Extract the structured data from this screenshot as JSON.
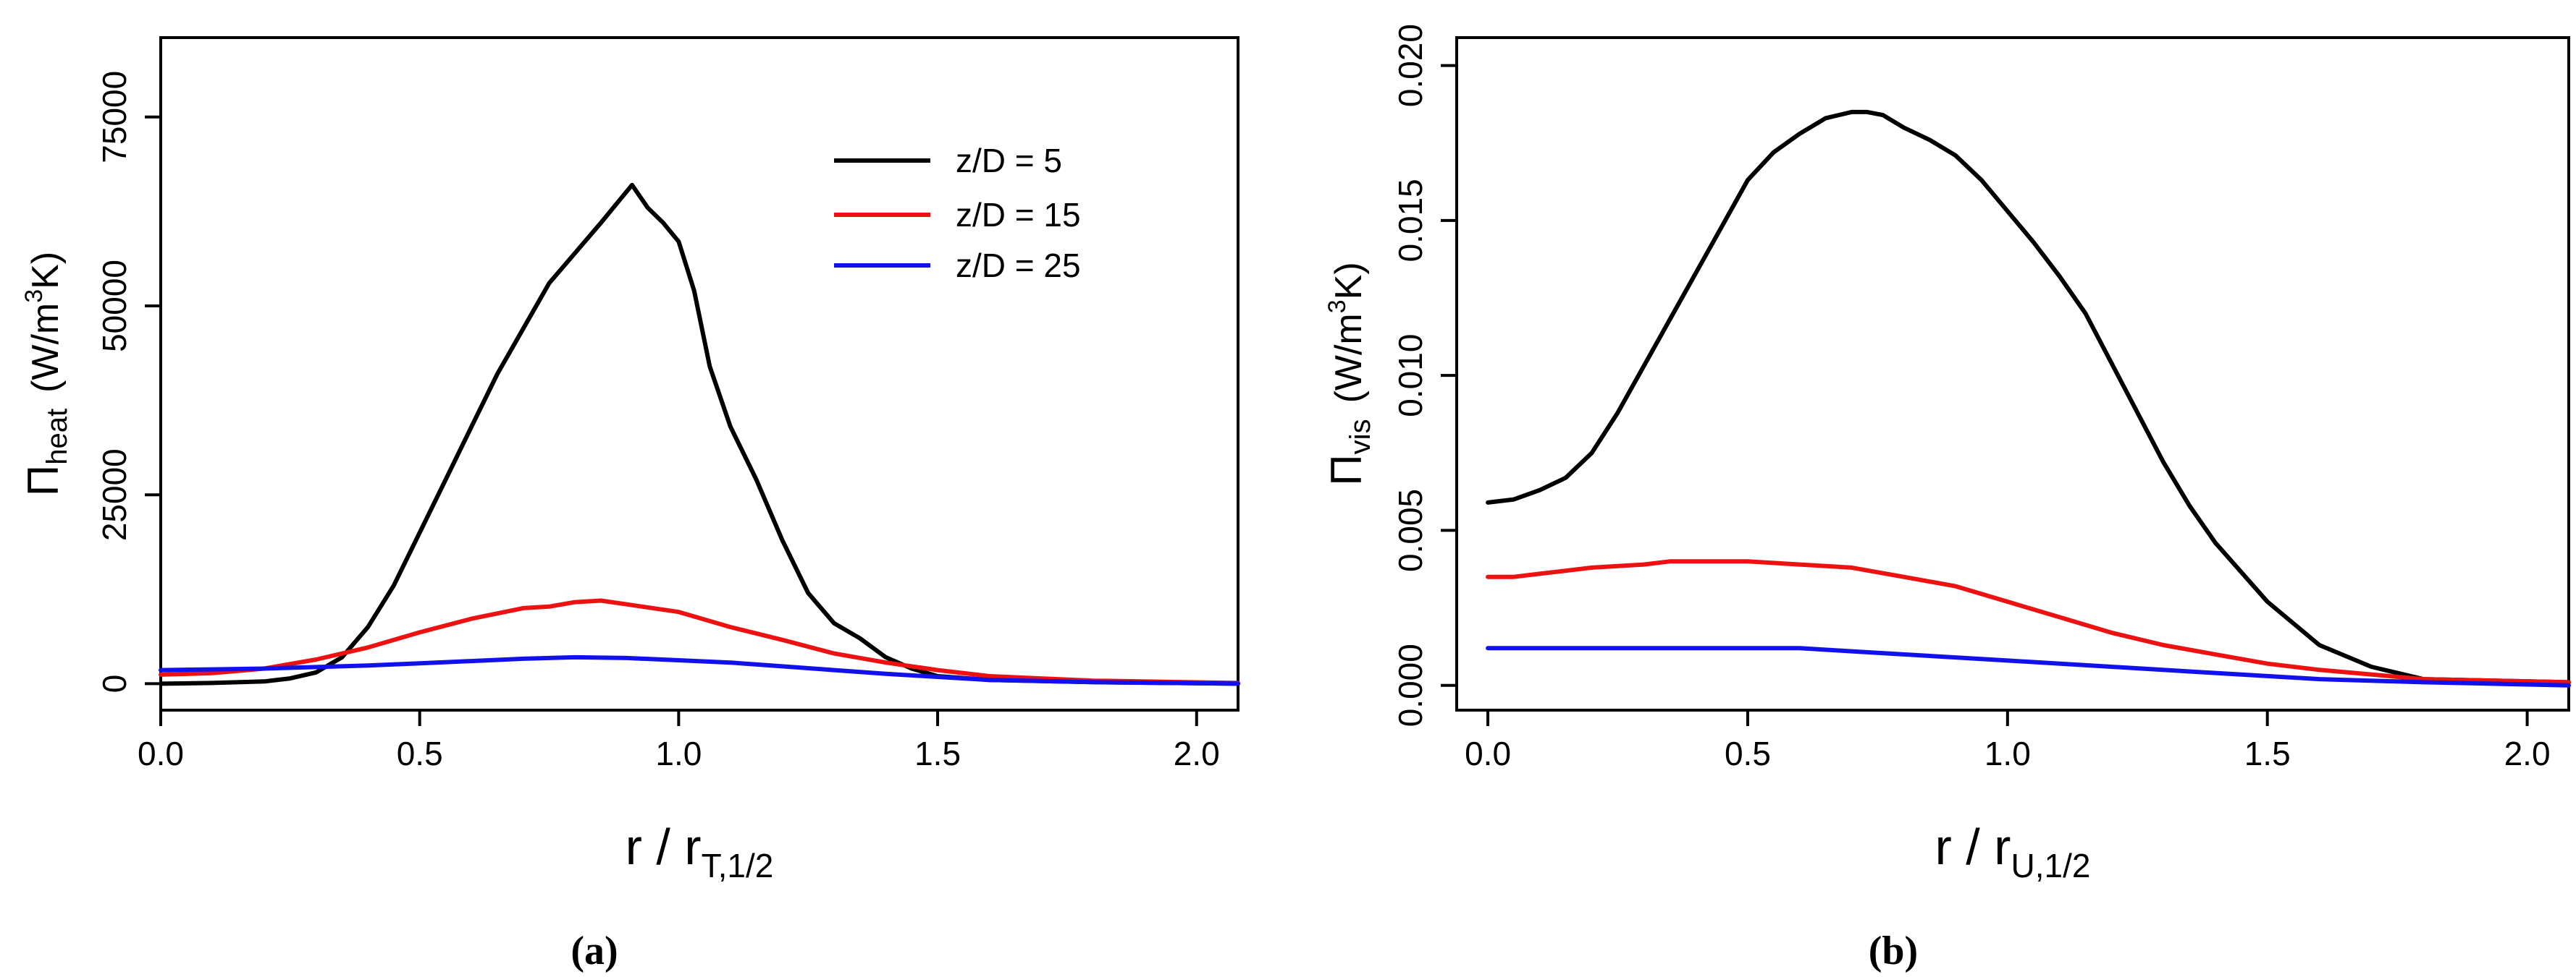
{
  "chart_data": [
    {
      "type": "line",
      "panel": "a",
      "caption": "(a)",
      "xlabel": {
        "main": "r / r",
        "sub": "T,1/2"
      },
      "ylabel": {
        "symbol": "Π",
        "sub": "heat",
        "units_a": "(W/m",
        "units_sup": "3",
        "units_b": "K)"
      },
      "xlim": [
        0.0,
        2.08
      ],
      "ylim": [
        -3500,
        85500
      ],
      "xticks": [
        "0.0",
        "0.5",
        "1.0",
        "1.5",
        "2.0"
      ],
      "xtick_values": [
        0.0,
        0.5,
        1.0,
        1.5,
        2.0
      ],
      "yticks": [
        "0",
        "25000",
        "50000",
        "75000"
      ],
      "ytick_values": [
        0,
        25000,
        50000,
        75000
      ],
      "legend": {
        "position": "top-right",
        "entries": [
          "z/D = 5",
          "z/D = 15",
          "z/D = 25"
        ]
      },
      "series": [
        {
          "name": "z/D = 5",
          "color": "#000000",
          "x": [
            0.0,
            0.1,
            0.2,
            0.25,
            0.3,
            0.35,
            0.4,
            0.45,
            0.5,
            0.55,
            0.6,
            0.65,
            0.7,
            0.75,
            0.8,
            0.85,
            0.88,
            0.91,
            0.94,
            0.97,
            1.0,
            1.03,
            1.06,
            1.1,
            1.15,
            1.2,
            1.25,
            1.3,
            1.35,
            1.4,
            1.45,
            1.5,
            1.6,
            1.8,
            2.08
          ],
          "values": [
            0,
            100,
            300,
            700,
            1500,
            3500,
            7500,
            13000,
            20000,
            27000,
            34000,
            41000,
            47000,
            53000,
            57000,
            61000,
            63500,
            66000,
            63000,
            61000,
            58500,
            52000,
            42000,
            34000,
            27000,
            19000,
            12000,
            8000,
            6000,
            3500,
            2000,
            1000,
            500,
            200,
            0
          ]
        },
        {
          "name": "z/D = 15",
          "color": "#ee1111",
          "x": [
            0.0,
            0.1,
            0.2,
            0.3,
            0.4,
            0.5,
            0.6,
            0.7,
            0.75,
            0.8,
            0.85,
            0.9,
            1.0,
            1.1,
            1.2,
            1.3,
            1.4,
            1.5,
            1.6,
            1.8,
            2.08
          ],
          "values": [
            1200,
            1400,
            2000,
            3200,
            4800,
            6800,
            8600,
            10000,
            10200,
            10800,
            11000,
            10500,
            9500,
            7500,
            5800,
            4000,
            2800,
            1800,
            1000,
            400,
            100
          ]
        },
        {
          "name": "z/D = 25",
          "color": "#1111ee",
          "x": [
            0.0,
            0.1,
            0.2,
            0.3,
            0.4,
            0.5,
            0.6,
            0.7,
            0.8,
            0.9,
            1.0,
            1.1,
            1.2,
            1.3,
            1.4,
            1.5,
            1.6,
            1.8,
            2.08
          ],
          "values": [
            1800,
            1900,
            2000,
            2200,
            2400,
            2700,
            3000,
            3300,
            3500,
            3400,
            3100,
            2800,
            2300,
            1800,
            1300,
            900,
            500,
            200,
            0
          ]
        }
      ]
    },
    {
      "type": "line",
      "panel": "b",
      "caption": "(b)",
      "xlabel": {
        "main": "r / r",
        "sub": "U,1/2"
      },
      "ylabel": {
        "symbol": "Π",
        "sub": "vis",
        "units_a": "(W/m",
        "units_sup": "3",
        "units_b": "K)"
      },
      "xlim": [
        -0.06,
        2.08
      ],
      "ylim": [
        -0.0008,
        0.0209
      ],
      "xticks": [
        "0.0",
        "0.5",
        "1.0",
        "1.5",
        "2.0"
      ],
      "xtick_values": [
        0.0,
        0.5,
        1.0,
        1.5,
        2.0
      ],
      "yticks": [
        "0.000",
        "0.005",
        "0.010",
        "0.015",
        "0.020"
      ],
      "ytick_values": [
        0.0,
        0.005,
        0.01,
        0.015,
        0.02
      ],
      "series": [
        {
          "name": "z/D = 5",
          "color": "#000000",
          "x": [
            0.0,
            0.05,
            0.1,
            0.15,
            0.2,
            0.25,
            0.3,
            0.35,
            0.4,
            0.45,
            0.5,
            0.55,
            0.6,
            0.65,
            0.7,
            0.73,
            0.76,
            0.8,
            0.85,
            0.9,
            0.95,
            1.0,
            1.05,
            1.1,
            1.15,
            1.2,
            1.25,
            1.3,
            1.35,
            1.4,
            1.5,
            1.6,
            1.7,
            1.8,
            2.08
          ],
          "values": [
            0.0059,
            0.006,
            0.0063,
            0.0067,
            0.0075,
            0.0088,
            0.0103,
            0.0118,
            0.0133,
            0.0148,
            0.0163,
            0.0172,
            0.0178,
            0.0183,
            0.0185,
            0.0185,
            0.0184,
            0.018,
            0.0176,
            0.0171,
            0.0163,
            0.0153,
            0.0143,
            0.0132,
            0.012,
            0.0104,
            0.0088,
            0.0072,
            0.0058,
            0.0046,
            0.0027,
            0.0013,
            0.0006,
            0.0002,
            0.0001
          ]
        },
        {
          "name": "z/D = 15",
          "color": "#ee1111",
          "x": [
            0.0,
            0.05,
            0.1,
            0.2,
            0.3,
            0.35,
            0.4,
            0.5,
            0.6,
            0.7,
            0.8,
            0.9,
            1.0,
            1.1,
            1.2,
            1.3,
            1.4,
            1.5,
            1.6,
            1.8,
            2.08
          ],
          "values": [
            0.0035,
            0.0035,
            0.0036,
            0.0038,
            0.0039,
            0.004,
            0.004,
            0.004,
            0.0039,
            0.0038,
            0.0035,
            0.0032,
            0.0027,
            0.0022,
            0.0017,
            0.0013,
            0.001,
            0.0007,
            0.0005,
            0.0002,
            0.0001
          ]
        },
        {
          "name": "z/D = 25",
          "color": "#1111ee",
          "x": [
            0.0,
            0.1,
            0.2,
            0.3,
            0.4,
            0.5,
            0.6,
            0.7,
            0.8,
            0.9,
            1.0,
            1.2,
            1.4,
            1.6,
            1.8,
            2.08
          ],
          "values": [
            0.0012,
            0.0012,
            0.0012,
            0.0012,
            0.0012,
            0.0012,
            0.0012,
            0.0011,
            0.001,
            0.0009,
            0.0008,
            0.0006,
            0.0004,
            0.0002,
            0.0001,
            0.0
          ]
        }
      ]
    }
  ]
}
